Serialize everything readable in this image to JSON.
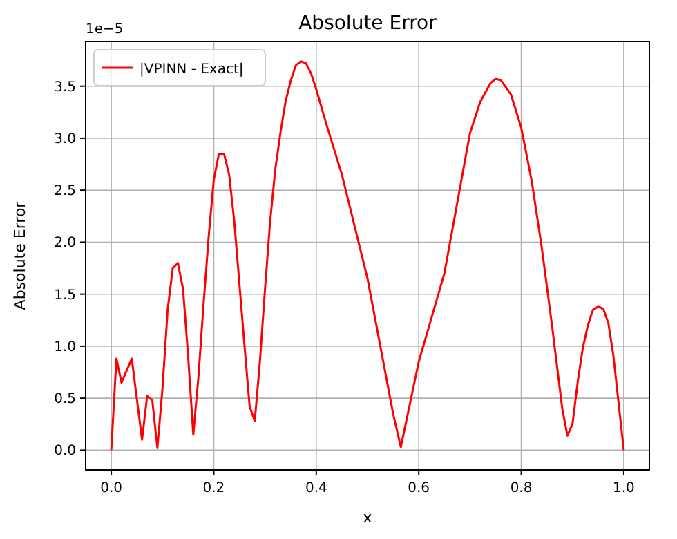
{
  "chart_data": {
    "type": "line",
    "title": "Absolute Error",
    "xlabel": "x",
    "ylabel": "Absolute Error",
    "annotations": [
      "1e−5"
    ],
    "x": [
      0,
      0.01,
      0.02,
      0.04,
      0.06,
      0.07,
      0.08,
      0.09,
      0.1,
      0.11,
      0.12,
      0.13,
      0.14,
      0.15,
      0.16,
      0.17,
      0.18,
      0.19,
      0.2,
      0.21,
      0.22,
      0.23,
      0.24,
      0.25,
      0.26,
      0.27,
      0.28,
      0.29,
      0.3,
      0.31,
      0.32,
      0.33,
      0.34,
      0.35,
      0.36,
      0.37,
      0.38,
      0.39,
      0.4,
      0.42,
      0.45,
      0.5,
      0.55,
      0.565,
      0.6,
      0.65,
      0.7,
      0.72,
      0.74,
      0.75,
      0.76,
      0.78,
      0.8,
      0.82,
      0.84,
      0.86,
      0.88,
      0.89,
      0.9,
      0.91,
      0.92,
      0.93,
      0.94,
      0.95,
      0.96,
      0.97,
      0.98,
      0.99,
      1
    ],
    "series": [
      {
        "name": "|VPINN - Exact|",
        "color": "#ff0000",
        "values": [
          0,
          0.88,
          0.65,
          0.88,
          0.1,
          0.52,
          0.48,
          0.02,
          0.6,
          1.35,
          1.75,
          1.8,
          1.55,
          0.9,
          0.15,
          0.7,
          1.4,
          2.05,
          2.6,
          2.85,
          2.85,
          2.65,
          2.2,
          1.6,
          1.0,
          0.42,
          0.28,
          0.85,
          1.55,
          2.2,
          2.7,
          3.05,
          3.35,
          3.55,
          3.7,
          3.74,
          3.72,
          3.62,
          3.47,
          3.13,
          2.65,
          1.65,
          0.35,
          0.03,
          0.85,
          1.7,
          3.05,
          3.35,
          3.53,
          3.57,
          3.56,
          3.42,
          3.1,
          2.6,
          1.95,
          1.2,
          0.4,
          0.14,
          0.25,
          0.65,
          0.98,
          1.2,
          1.35,
          1.38,
          1.36,
          1.22,
          0.9,
          0.45,
          0
        ]
      }
    ],
    "xlim": [
      -0.05,
      1.05
    ],
    "xticks": [
      {
        "value": 0,
        "label": "0.0"
      },
      0.2,
      0.4,
      0.6,
      0.8,
      {
        "value": 1,
        "label": "1.0"
      }
    ],
    "ylim": [
      -0.19,
      3.93
    ],
    "yticks": [
      {
        "value": 0,
        "label": "0.0"
      },
      0.5,
      {
        "value": 1,
        "label": "1.0"
      },
      1.5,
      {
        "value": 2,
        "label": "2.0"
      },
      2.5,
      {
        "value": 3,
        "label": "3.0"
      },
      3.5
    ],
    "grid": true,
    "legend": "top left",
    "line_style": "solid",
    "marker": "none"
  }
}
